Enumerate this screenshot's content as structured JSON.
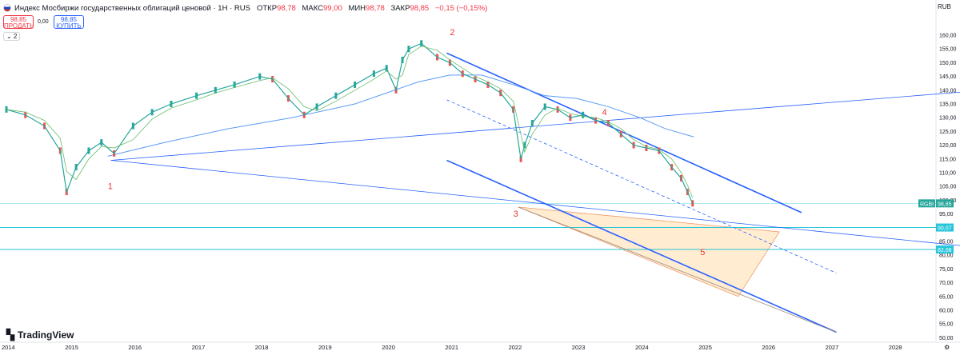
{
  "header": {
    "title": "Индекс Мосбиржи государственных облигаций ценовой · 1Н · RUS",
    "open_label": "ОТКР",
    "open": "98,78",
    "high_label": "МАКС",
    "high": "99,00",
    "low_label": "МИН",
    "low": "98,78",
    "close_label": "ЗАКР",
    "close": "98,85",
    "change": "−0,15 (−0,15%)"
  },
  "trade": {
    "sell_price": "98,85",
    "sell_label": "ПРОДАТЬ",
    "spread": "0,00",
    "buy_price": "98,85",
    "buy_label": "КУПИТЬ"
  },
  "indicators_toggle": "⌄ 2",
  "currency": "RUB",
  "price_axis": {
    "ticks": [
      "160,00",
      "155,00",
      "150,00",
      "145,00",
      "140,00",
      "135,00",
      "130,00",
      "125,00",
      "120,00",
      "115,00",
      "110,00",
      "105,00",
      "100,00",
      "95,00",
      "90,00",
      "85,00",
      "80,00",
      "75,00",
      "70,00",
      "65,00",
      "60,00",
      "55,00",
      "50,00"
    ],
    "last_symbol": "RGBI",
    "last_price": "98,85",
    "level_1": "90,07",
    "level_2": "82,08"
  },
  "time_axis": [
    "2014",
    "2015",
    "2016",
    "2017",
    "2018",
    "2019",
    "2020",
    "2021",
    "2022",
    "2023",
    "2024",
    "2025",
    "2026",
    "2027",
    "2028"
  ],
  "annotations": [
    "1",
    "2",
    "3",
    "4",
    "5"
  ],
  "brand": "TradingView",
  "colors": {
    "up": "#26a69a",
    "down": "#ef5350",
    "trend": "#2962ff",
    "level": "#26c6da",
    "zone": "#ffe0b2",
    "ann": "#e53935"
  },
  "chart_data": {
    "type": "line",
    "title": "Индекс Мосбиржи государственных облигаций ценовой",
    "xlabel": "",
    "ylabel": "",
    "ylim": [
      50,
      160
    ],
    "x": [
      2014.0,
      2014.3,
      2014.6,
      2014.85,
      2014.95,
      2015.1,
      2015.3,
      2015.5,
      2015.7,
      2016.0,
      2016.3,
      2016.6,
      2017.0,
      2017.3,
      2017.6,
      2018.0,
      2018.2,
      2018.45,
      2018.7,
      2018.9,
      2019.2,
      2019.5,
      2019.8,
      2020.0,
      2020.15,
      2020.25,
      2020.35,
      2020.55,
      2020.8,
      2021.0,
      2021.2,
      2021.4,
      2021.6,
      2021.8,
      2022.0,
      2022.12,
      2022.18,
      2022.3,
      2022.5,
      2022.7,
      2022.9,
      2023.1,
      2023.3,
      2023.5,
      2023.7,
      2023.9,
      2024.1,
      2024.3,
      2024.5,
      2024.65,
      2024.75,
      2024.83
    ],
    "series": [
      {
        "values": [
          133,
          131,
          127,
          118,
          103,
          112,
          118,
          121,
          117,
          127,
          132,
          135,
          138,
          140,
          142,
          145,
          144,
          137,
          131,
          134,
          138,
          142,
          146,
          148,
          140,
          151,
          155,
          157,
          152,
          150,
          146,
          144,
          142,
          139,
          133,
          115,
          120,
          128,
          134,
          133,
          130,
          131,
          129,
          128,
          124,
          120,
          119,
          118,
          112,
          108,
          103,
          98.85
        ]
      }
    ]
  }
}
